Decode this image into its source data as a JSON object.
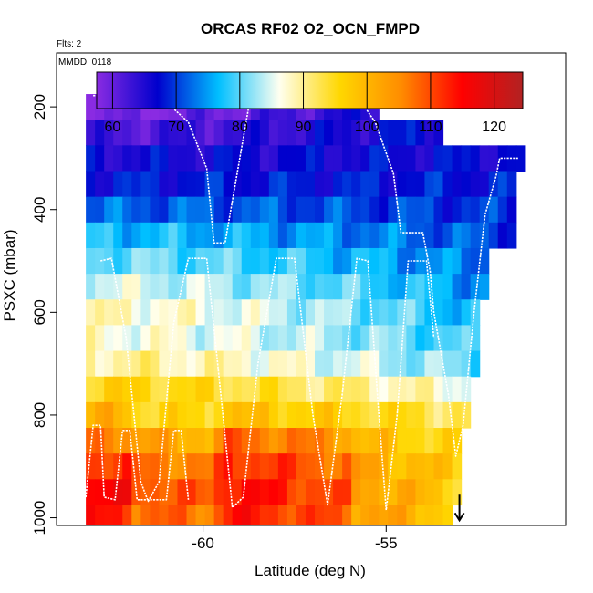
{
  "chart_data": {
    "type": "heatmap",
    "title": "ORCAS RF02 O2_OCN_FMPD",
    "flights_note": "Flts: 2",
    "date_note": "MMDD: 0118",
    "xlabel": "Latitude (deg N)",
    "ylabel": "PSXC (mbar)",
    "xlim": [
      -64.0,
      -50.1
    ],
    "ylim": [
      1015,
      95
    ],
    "x_ticks": [
      -60,
      -55
    ],
    "x_tick_labels": [
      "-60",
      "-55"
    ],
    "y_ticks": [
      200,
      400,
      600,
      800,
      1000
    ],
    "y_tick_labels": [
      "200",
      "400",
      "600",
      "800",
      "1000"
    ],
    "colorbar": {
      "range": [
        57.5,
        124.5
      ],
      "ticks": [
        60,
        70,
        80,
        90,
        100,
        110,
        120
      ],
      "tick_labels": [
        "60",
        "70",
        "80",
        "90",
        "100",
        "110",
        "120"
      ],
      "palette": [
        "#8a2be2",
        "#0000cd",
        "#00bfff",
        "#fffff0",
        "#ffd700",
        "#ff8c00",
        "#ff0000",
        "#b22222"
      ]
    },
    "bin_width_deg": 0.25,
    "pressure_bands": [
      {
        "p_top": 175,
        "p_bot": 225,
        "lat_min": -63.2,
        "lat_max": -55.2,
        "base": 58,
        "base_end": 66
      },
      {
        "p_top": 225,
        "p_bot": 275,
        "lat_min": -63.2,
        "lat_max": -53.6,
        "base": 62,
        "base_end": 68
      },
      {
        "p_top": 275,
        "p_bot": 325,
        "lat_min": -63.2,
        "lat_max": -51.4,
        "base": 66,
        "base_end": 67
      },
      {
        "p_top": 325,
        "p_bot": 375,
        "lat_min": -63.2,
        "lat_max": -51.6,
        "base": 68,
        "base_end": 68
      },
      {
        "p_top": 375,
        "p_bot": 425,
        "lat_min": -63.2,
        "lat_max": -51.6,
        "base": 72,
        "base_end": 69
      },
      {
        "p_top": 425,
        "p_bot": 475,
        "lat_min": -63.2,
        "lat_max": -51.6,
        "base": 77,
        "base_end": 70
      },
      {
        "p_top": 475,
        "p_bot": 525,
        "lat_min": -63.2,
        "lat_max": -52.2,
        "base": 81,
        "base_end": 72
      },
      {
        "p_top": 525,
        "p_bot": 575,
        "lat_min": -63.2,
        "lat_max": -52.4,
        "base": 85,
        "base_end": 74
      },
      {
        "p_top": 575,
        "p_bot": 625,
        "lat_min": -63.2,
        "lat_max": -52.6,
        "base": 88,
        "base_end": 76
      },
      {
        "p_top": 625,
        "p_bot": 675,
        "lat_min": -63.2,
        "lat_max": -52.6,
        "base": 87,
        "base_end": 78
      },
      {
        "p_top": 675,
        "p_bot": 725,
        "lat_min": -63.2,
        "lat_max": -52.6,
        "base": 90,
        "base_end": 80
      },
      {
        "p_top": 725,
        "p_bot": 775,
        "lat_min": -63.2,
        "lat_max": -52.8,
        "base": 96,
        "base_end": 86
      },
      {
        "p_top": 775,
        "p_bot": 825,
        "lat_min": -63.2,
        "lat_max": -52.8,
        "base": 100,
        "base_end": 92
      },
      {
        "p_top": 825,
        "p_bot": 875,
        "lat_min": -63.2,
        "lat_max": -53.0,
        "base": 107,
        "base_end": 94
      },
      {
        "p_top": 875,
        "p_bot": 925,
        "lat_min": -63.2,
        "lat_max": -53.0,
        "base": 112,
        "base_end": 96
      },
      {
        "p_top": 925,
        "p_bot": 975,
        "lat_min": -63.2,
        "lat_max": -53.0,
        "base": 115,
        "base_end": 96
      },
      {
        "p_top": 975,
        "p_bot": 1015,
        "lat_min": -63.2,
        "lat_max": -53.4,
        "base": 113,
        "base_end": 98
      }
    ],
    "flight_track": [
      [
        -63.0,
        178
      ],
      [
        -61.2,
        178
      ],
      [
        -60.4,
        230
      ],
      [
        -59.9,
        320
      ],
      [
        -59.7,
        465
      ],
      [
        -59.4,
        465
      ],
      [
        -58.7,
        178
      ],
      [
        -55.8,
        178
      ],
      [
        -55.3,
        230
      ],
      [
        -54.8,
        330
      ],
      [
        -54.6,
        445
      ],
      [
        -54.0,
        445
      ],
      [
        -53.8,
        520
      ],
      [
        -53.7,
        600
      ],
      [
        -53.3,
        760
      ],
      [
        -53.1,
        880
      ],
      [
        -52.9,
        820
      ],
      [
        -52.6,
        600
      ],
      [
        -52.3,
        410
      ],
      [
        -52.0,
        335
      ],
      [
        -51.9,
        300
      ],
      [
        -51.4,
        300
      ]
    ],
    "flight_track_2": [
      [
        -62.8,
        500
      ],
      [
        -62.5,
        495
      ],
      [
        -62.1,
        650
      ],
      [
        -61.7,
        930
      ],
      [
        -61.5,
        968
      ],
      [
        -61.2,
        930
      ],
      [
        -60.8,
        620
      ],
      [
        -60.4,
        495
      ],
      [
        -59.9,
        495
      ],
      [
        -59.6,
        700
      ],
      [
        -59.2,
        980
      ],
      [
        -58.9,
        960
      ],
      [
        -58.5,
        700
      ],
      [
        -58.0,
        495
      ],
      [
        -57.5,
        495
      ],
      [
        -57.0,
        800
      ],
      [
        -56.6,
        975
      ],
      [
        -56.2,
        760
      ],
      [
        -55.8,
        495
      ],
      [
        -55.5,
        500
      ],
      [
        -55.2,
        800
      ],
      [
        -55.0,
        985
      ],
      [
        -54.7,
        800
      ],
      [
        -54.4,
        500
      ],
      [
        -53.9,
        500
      ],
      [
        -53.7,
        650
      ]
    ],
    "flight_track_3": [
      [
        -63.2,
        960
      ],
      [
        -63.0,
        820
      ],
      [
        -62.8,
        820
      ],
      [
        -62.7,
        960
      ],
      [
        -62.4,
        965
      ],
      [
        -62.2,
        830
      ],
      [
        -62.0,
        830
      ],
      [
        -61.8,
        965
      ],
      [
        -61.0,
        965
      ],
      [
        -60.8,
        830
      ],
      [
        -60.6,
        830
      ],
      [
        -60.4,
        965
      ]
    ],
    "marker": {
      "lat": -53.0,
      "p_from": 955,
      "p_to": 1005,
      "shape": "down-arrow"
    }
  }
}
